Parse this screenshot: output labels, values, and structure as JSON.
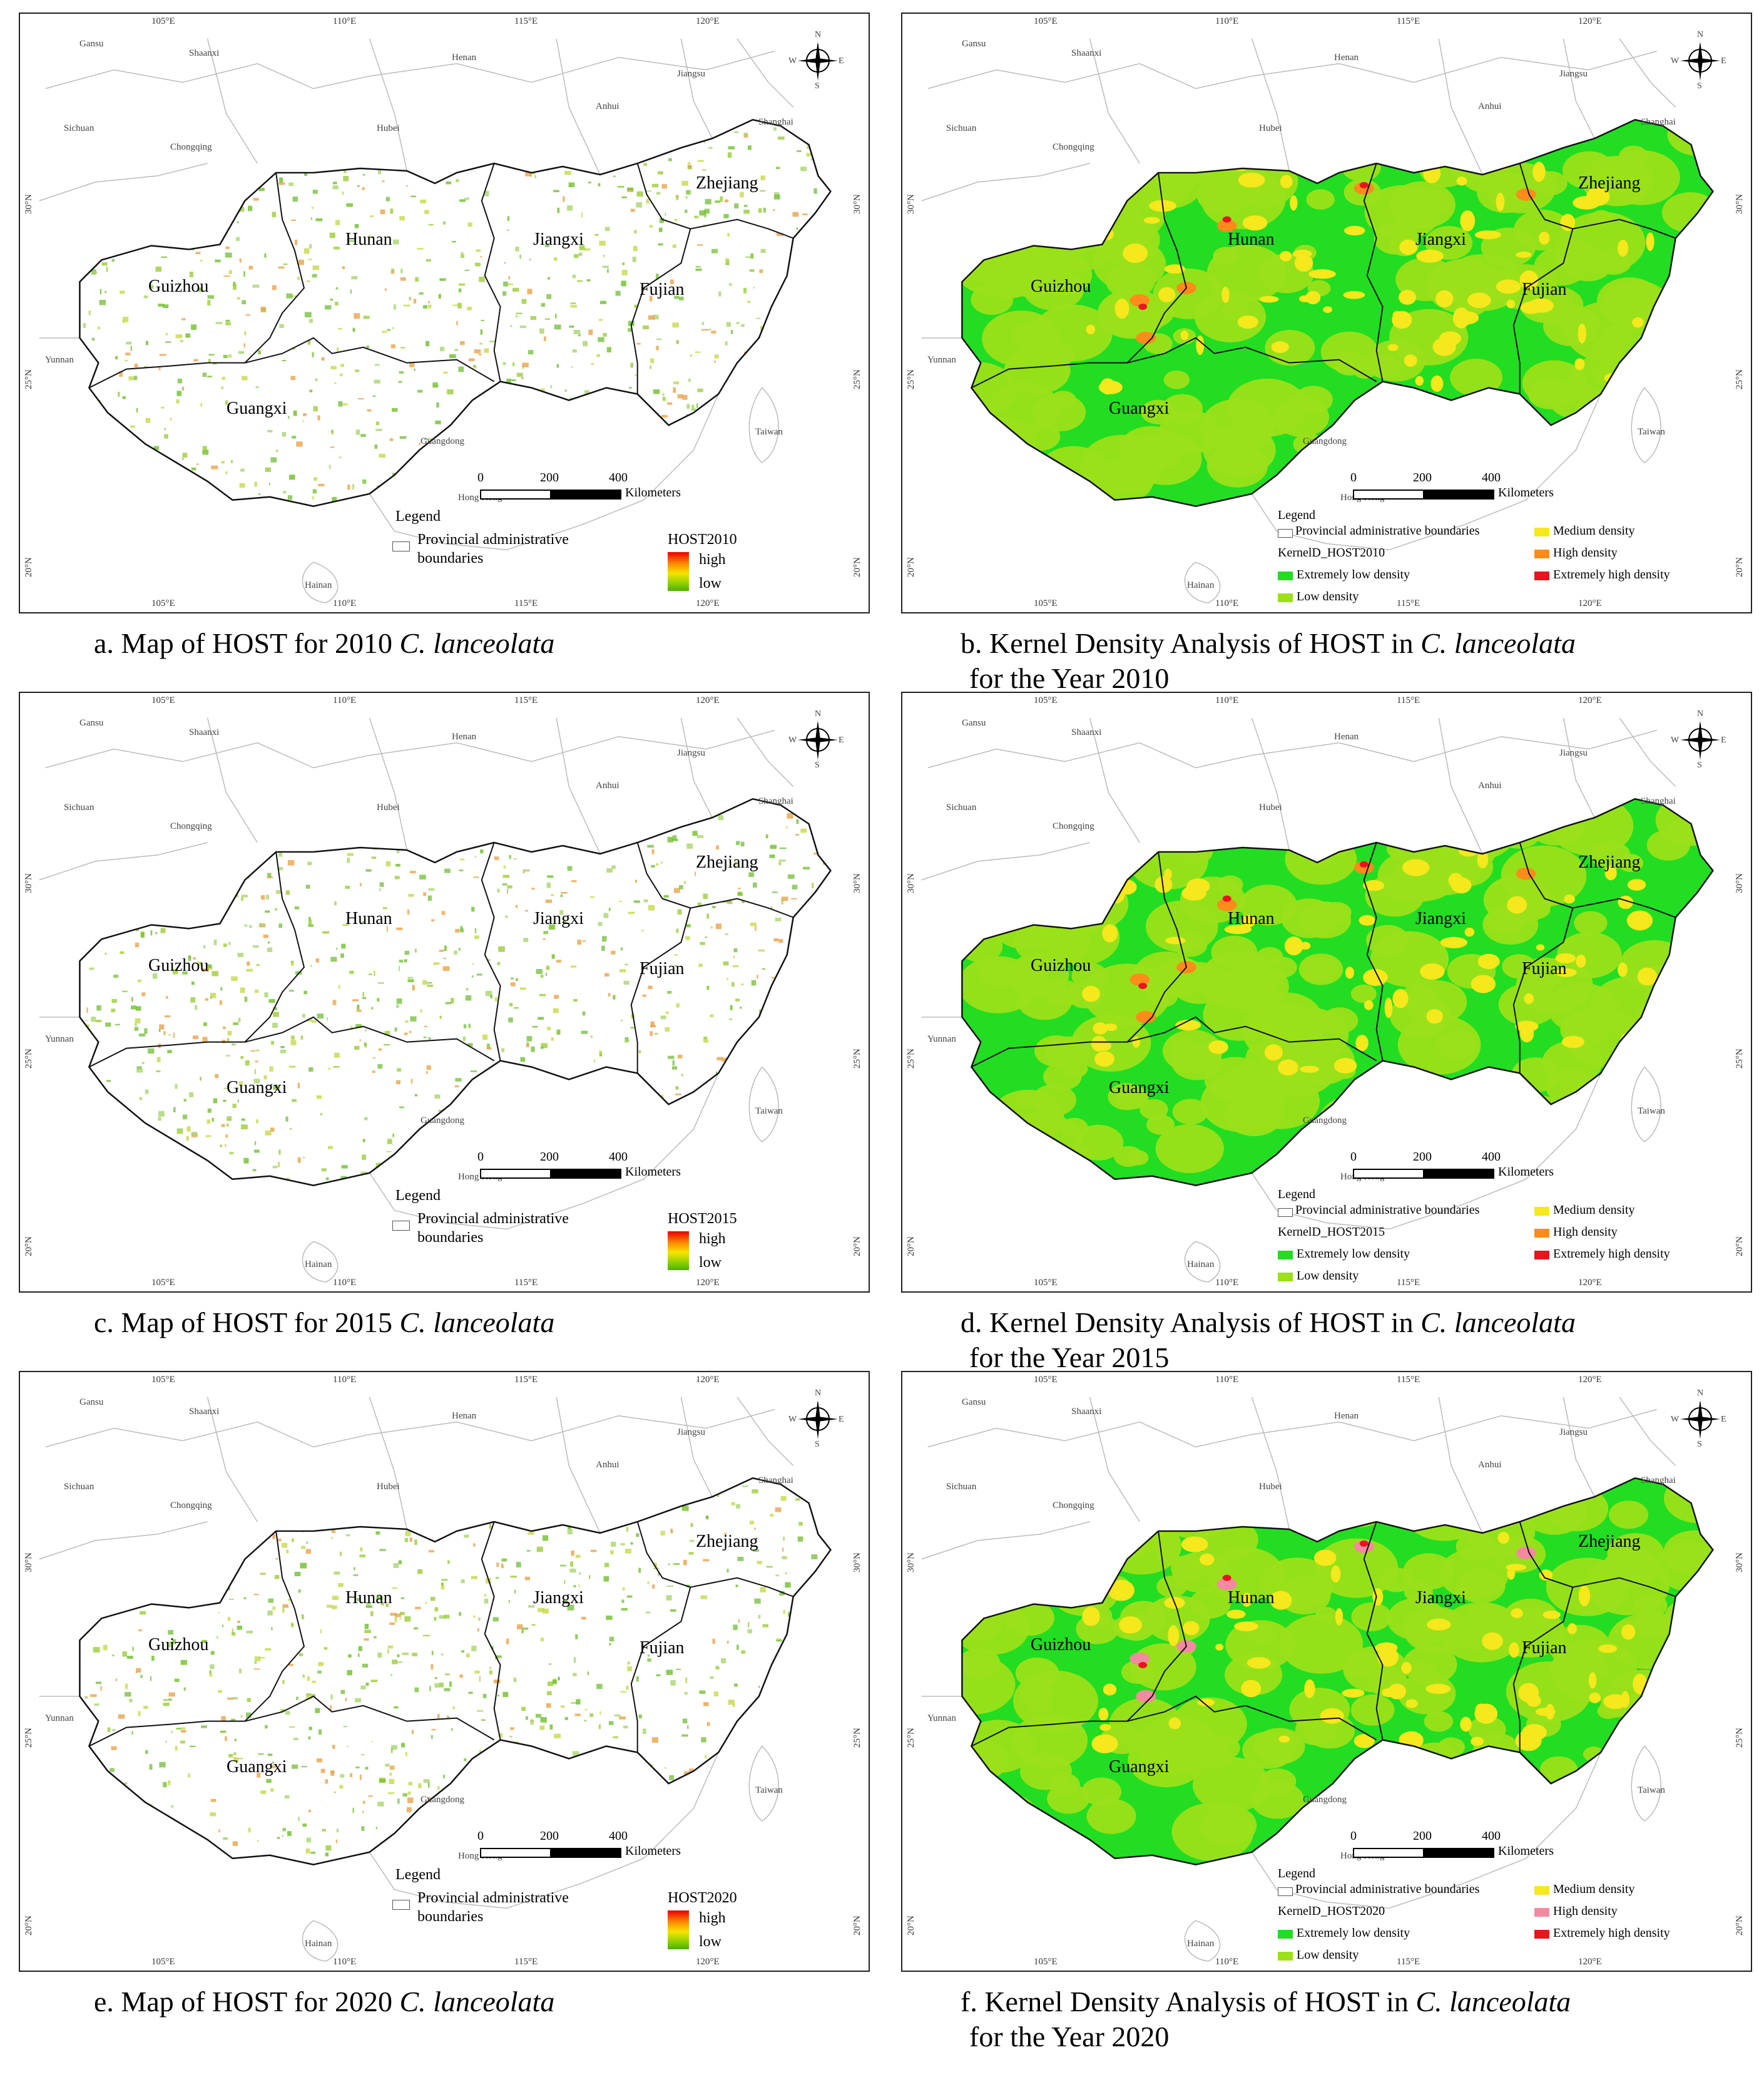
{
  "axes": {
    "lon_ticks": [
      "105°E",
      "110°E",
      "115°E",
      "120°E"
    ],
    "lat_ticks": [
      "30°N",
      "25°N",
      "20°N"
    ]
  },
  "neighbors": [
    "Gansu",
    "Shaanxi",
    "Henan",
    "Jiangsu",
    "Anhui",
    "Shanghai",
    "Sichuan",
    "Hubei",
    "Chongqing",
    "Yunnan",
    "Guangdong",
    "Taiwan",
    "Hainan",
    "Hong Kong"
  ],
  "provinces": [
    "Guizhou",
    "Hunan",
    "Jiangxi",
    "Zhejiang",
    "Fujian",
    "Guangxi"
  ],
  "compass": {
    "n": "N",
    "s": "S",
    "e": "E",
    "w": "W"
  },
  "scalebar": {
    "ticks": [
      "0",
      "200",
      "400"
    ],
    "unit": "Kilometers"
  },
  "legend_common": {
    "title": "Legend",
    "boundary_line1": "Provincial administrative",
    "boundary_line2": "boundaries",
    "boundary_full": "Provincial administrative boundaries",
    "high": "high",
    "low": "low",
    "classes": [
      "Extremely low density",
      "Low density",
      "Medium density",
      "High density",
      "Extremely high density"
    ]
  },
  "colors": {
    "kd_extremely_low": "#22dd22",
    "kd_low": "#9be01a",
    "kd_medium": "#f5e81c",
    "kd_high": "#ff8c1a",
    "kd_high_2020": "#f48aa0",
    "kd_extremely_high": "#e8141e"
  },
  "panels": [
    {
      "id": "a",
      "ramp_title": "HOST2010",
      "caption_pre": "a. Map of HOST for 2010 ",
      "caption_it": "C. lanceolata",
      "caption_l2": ""
    },
    {
      "id": "b",
      "kd_title": "KernelD_HOST2010",
      "caption_pre": "b. Kernel Density Analysis of HOST in ",
      "caption_it": "C. lanceolata",
      "caption_l2": "for the Year 2010"
    },
    {
      "id": "c",
      "ramp_title": "HOST2015",
      "caption_pre": "c. Map of HOST for 2015 ",
      "caption_it": "C. lanceolata",
      "caption_l2": ""
    },
    {
      "id": "d",
      "kd_title": "KernelD_HOST2015",
      "caption_pre": "d. Kernel Density Analysis of HOST in ",
      "caption_it": "C. lanceolata",
      "caption_l2": "for the Year 2015"
    },
    {
      "id": "e",
      "ramp_title": "HOST2020",
      "caption_pre": "e. Map of HOST for 2020 ",
      "caption_it": "C. lanceolata",
      "caption_l2": ""
    },
    {
      "id": "f",
      "kd_title": "KernelD_HOST2020",
      "caption_pre": "f. Kernel Density Analysis of HOST in ",
      "caption_it": "C. lanceolata",
      "caption_l2": "for the Year 2020"
    }
  ]
}
